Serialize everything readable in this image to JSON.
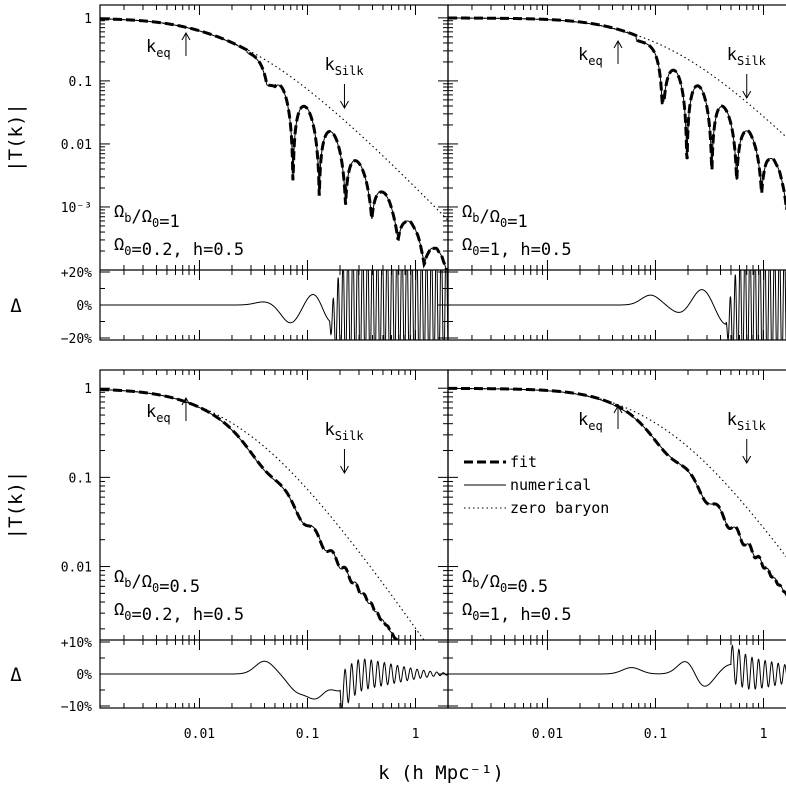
{
  "chart_data": {
    "type": "line",
    "figure": "Transfer function |T(k)| with fractional residual panels",
    "xlabel": "k (h Mpc⁻¹)",
    "x_scale": "log",
    "xlim": [
      0.0012,
      2.0
    ],
    "x_ticks": [
      {
        "value": 0.01,
        "label": "0.01"
      },
      {
        "value": 0.1,
        "label": "0.1"
      },
      {
        "value": 1,
        "label": "1"
      }
    ],
    "y_scale": "log",
    "ylabel": "|T(k)|",
    "ylabel_residual": "Δ",
    "legend": {
      "placement": "center",
      "entries": [
        {
          "label": "fit",
          "style": "dashed"
        },
        {
          "label": "numerical",
          "style": "solid"
        },
        {
          "label": "zero baryon",
          "style": "dotted"
        }
      ]
    },
    "panels": [
      {
        "id": "top-left",
        "baryon_fraction_label": "Ωb/Ω0=1",
        "fb": 1.0,
        "omega_label": "Ω0=0.2,  h=0.5",
        "omega0": 0.2,
        "h": 0.5,
        "ylim": [
          0.0001,
          1.6
        ],
        "y_ticks": [
          {
            "value": 1,
            "label": "1"
          },
          {
            "value": 0.1,
            "label": "0.1"
          },
          {
            "value": 0.01,
            "label": "0.01"
          },
          {
            "value": 0.001,
            "label": "10⁻³"
          }
        ],
        "show_y_labels": true,
        "show_legend": false,
        "k_eq": 0.0075,
        "k_silk": 0.22,
        "zero_baryon": {
          "k": [
            0.0012,
            0.01,
            0.03,
            0.1,
            0.3,
            0.7,
            1.0
          ],
          "T": [
            0.97,
            0.77,
            0.51,
            0.19,
            0.037,
            0.0098,
            0.0054
          ]
        },
        "numerical": {
          "k": [
            0.0012,
            0.01,
            0.03,
            0.05,
            0.1,
            0.2,
            0.3
          ],
          "envelope_T": [
            0.97,
            0.77,
            0.36,
            0.05,
            0.01,
            0.004,
            0.002
          ],
          "node_k": [
            0.042,
            0.078,
            0.12,
            0.16,
            0.2,
            0.25
          ]
        },
        "residual": {
          "ylim": [
            -0.2,
            0.2
          ],
          "y_ticks": [
            {
              "value": 0.2,
              "label": "+20%"
            },
            {
              "value": 0,
              "label": "0%"
            },
            {
              "value": -0.2,
              "label": "−20%"
            }
          ],
          "extremes": [
            {
              "k": 0.04,
              "delta": 0.02
            },
            {
              "k": 0.07,
              "delta": -0.11
            },
            {
              "k": 0.12,
              "delta": 0.1
            },
            {
              "k": 0.16,
              "delta": -0.13
            }
          ]
        }
      },
      {
        "id": "top-right",
        "baryon_fraction_label": "Ωb/Ω0=1",
        "fb": 1.0,
        "omega_label": "Ω0=1,  h=0.5",
        "omega0": 1.0,
        "h": 0.5,
        "ylim": [
          0.0001,
          1.6
        ],
        "show_y_labels": false,
        "show_legend": false,
        "k_eq": 0.045,
        "k_silk": 0.7,
        "zero_baryon": {
          "k": [
            0.0012,
            0.01,
            0.03,
            0.1,
            0.3,
            1.0,
            2.0
          ],
          "T": [
            0.99,
            0.96,
            0.88,
            0.6,
            0.22,
            0.035,
            0.011
          ]
        },
        "numerical": {
          "k": [
            0.0012,
            0.05,
            0.1,
            0.2,
            0.5,
            1.0,
            2.0
          ],
          "envelope_T": [
            0.99,
            0.85,
            0.3,
            0.05,
            0.01,
            0.002,
            0.0005
          ],
          "node_k": [
            0.12,
            0.22,
            0.32,
            0.42,
            0.55,
            0.7
          ]
        },
        "residual": {
          "ylim": [
            -0.2,
            0.2
          ],
          "extremes": [
            {
              "k": 0.09,
              "delta": 0.06
            },
            {
              "k": 0.17,
              "delta": -0.05
            },
            {
              "k": 0.27,
              "delta": 0.1
            },
            {
              "k": 0.45,
              "delta": -0.12
            }
          ]
        }
      },
      {
        "id": "bottom-left",
        "baryon_fraction_label": "Ωb/Ω0=0.5",
        "fb": 0.5,
        "omega_label": "Ω0=0.2,  h=0.5",
        "omega0": 0.2,
        "h": 0.5,
        "ylim": [
          0.0015,
          1.6
        ],
        "y_ticks": [
          {
            "value": 1,
            "label": "1"
          },
          {
            "value": 0.1,
            "label": "0.1"
          },
          {
            "value": 0.01,
            "label": "0.01"
          }
        ],
        "show_y_labels": true,
        "show_legend": true,
        "k_eq": 0.0075,
        "k_silk": 0.22,
        "zero_baryon": {
          "k": [
            0.0012,
            0.01,
            0.03,
            0.1,
            0.3,
            1.0
          ],
          "T": [
            0.97,
            0.77,
            0.51,
            0.19,
            0.037,
            0.0049
          ]
        },
        "numerical": {
          "k": [
            0.0012,
            0.01,
            0.03,
            0.1,
            0.3,
            0.9
          ],
          "T": [
            0.97,
            0.76,
            0.38,
            0.037,
            0.0075,
            0.0015
          ]
        },
        "residual": {
          "ylim": [
            -0.1,
            0.1
          ],
          "y_ticks": [
            {
              "value": 0.1,
              "label": "+10%"
            },
            {
              "value": 0,
              "label": "0%"
            },
            {
              "value": -0.1,
              "label": "−10%"
            }
          ],
          "extremes": [
            {
              "k": 0.04,
              "delta": 0.04
            },
            {
              "k": 0.08,
              "delta": -0.05
            },
            {
              "k": 0.12,
              "delta": -0.07
            },
            {
              "k": 0.2,
              "delta": -0.05
            }
          ]
        }
      },
      {
        "id": "bottom-right",
        "baryon_fraction_label": "Ωb/Ω0=0.5",
        "fb": 0.5,
        "omega_label": "Ω0=1,  h=0.5",
        "omega0": 1.0,
        "h": 0.5,
        "ylim": [
          0.0015,
          1.6
        ],
        "show_y_labels": false,
        "show_legend": false,
        "k_eq": 0.045,
        "k_silk": 0.7,
        "zero_baryon": {
          "k": [
            0.0012,
            0.01,
            0.03,
            0.1,
            0.3,
            1.0,
            2.0
          ],
          "T": [
            0.99,
            0.96,
            0.88,
            0.6,
            0.22,
            0.035,
            0.01
          ]
        },
        "numerical": {
          "k": [
            0.0012,
            0.03,
            0.1,
            0.3,
            1.0,
            2.0
          ],
          "T": [
            0.99,
            0.86,
            0.35,
            0.06,
            0.009,
            0.002
          ]
        },
        "residual": {
          "ylim": [
            -0.1,
            0.1
          ],
          "extremes": [
            {
              "k": 0.06,
              "delta": 0.02
            },
            {
              "k": 0.2,
              "delta": 0.05
            },
            {
              "k": 0.27,
              "delta": -0.05
            },
            {
              "k": 0.5,
              "delta": 0.03
            }
          ]
        }
      }
    ]
  }
}
